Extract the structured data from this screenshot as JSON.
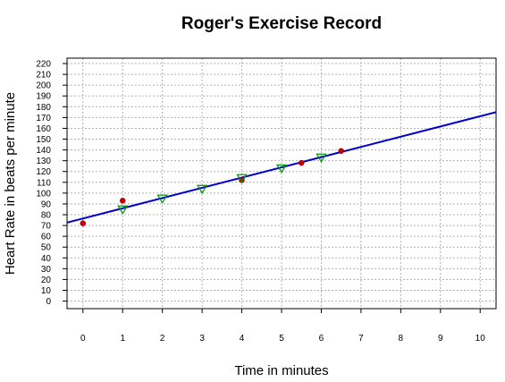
{
  "chart_data": {
    "type": "scatter",
    "title": "Roger's Exercise Record",
    "xlabel": "Time in minutes",
    "ylabel": "Heart Rate in beats per minute",
    "xlim": [
      -0.4,
      10.4
    ],
    "ylim": [
      -7,
      225
    ],
    "x_ticks": [
      0,
      1,
      2,
      3,
      4,
      5,
      6,
      7,
      8,
      9,
      10
    ],
    "y_ticks": [
      0,
      10,
      20,
      30,
      40,
      50,
      60,
      70,
      80,
      90,
      100,
      110,
      120,
      130,
      140,
      150,
      160,
      170,
      180,
      190,
      200,
      210,
      220
    ],
    "grid": true,
    "series": [
      {
        "marker": "circle",
        "color": "#cc0000",
        "x": [
          0,
          1,
          4,
          5.5,
          6.5
        ],
        "y": [
          72,
          93,
          112,
          128,
          139
        ]
      },
      {
        "marker": "triangle-down",
        "color": "#009900",
        "x": [
          1,
          2,
          3,
          4,
          5,
          6
        ],
        "y": [
          85,
          95,
          104,
          114,
          123,
          133
        ]
      }
    ],
    "fit_line": {
      "color": "#0000cc",
      "x": [
        -0.4,
        10.4
      ],
      "y": [
        72.7,
        175
      ]
    }
  }
}
